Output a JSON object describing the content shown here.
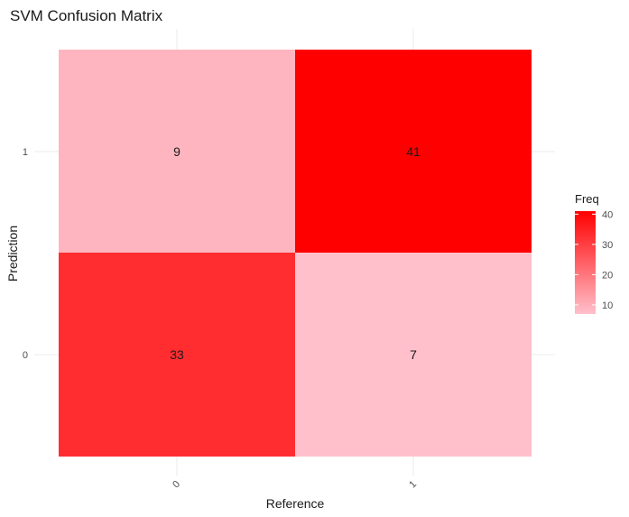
{
  "chart_data": {
    "type": "heatmap",
    "title": "SVM Confusion Matrix",
    "xlabel": "Reference",
    "ylabel": "Prediction",
    "x_categories": [
      "0",
      "1"
    ],
    "y_categories": [
      "0",
      "1"
    ],
    "cells": [
      {
        "reference": "0",
        "prediction": "1",
        "freq": 9,
        "label": "9"
      },
      {
        "reference": "1",
        "prediction": "1",
        "freq": 41,
        "label": "41"
      },
      {
        "reference": "0",
        "prediction": "0",
        "freq": 33,
        "label": "33"
      },
      {
        "reference": "1",
        "prediction": "0",
        "freq": 7,
        "label": "7"
      }
    ],
    "legend": {
      "title": "Freq",
      "ticks": [
        10,
        20,
        30,
        40
      ],
      "tick_labels": [
        "10",
        "20",
        "30",
        "40"
      ],
      "range": [
        7,
        41
      ],
      "low_color": "#ffc0cb",
      "high_color": "#ff0000",
      "position": "right"
    },
    "grid": true
  }
}
